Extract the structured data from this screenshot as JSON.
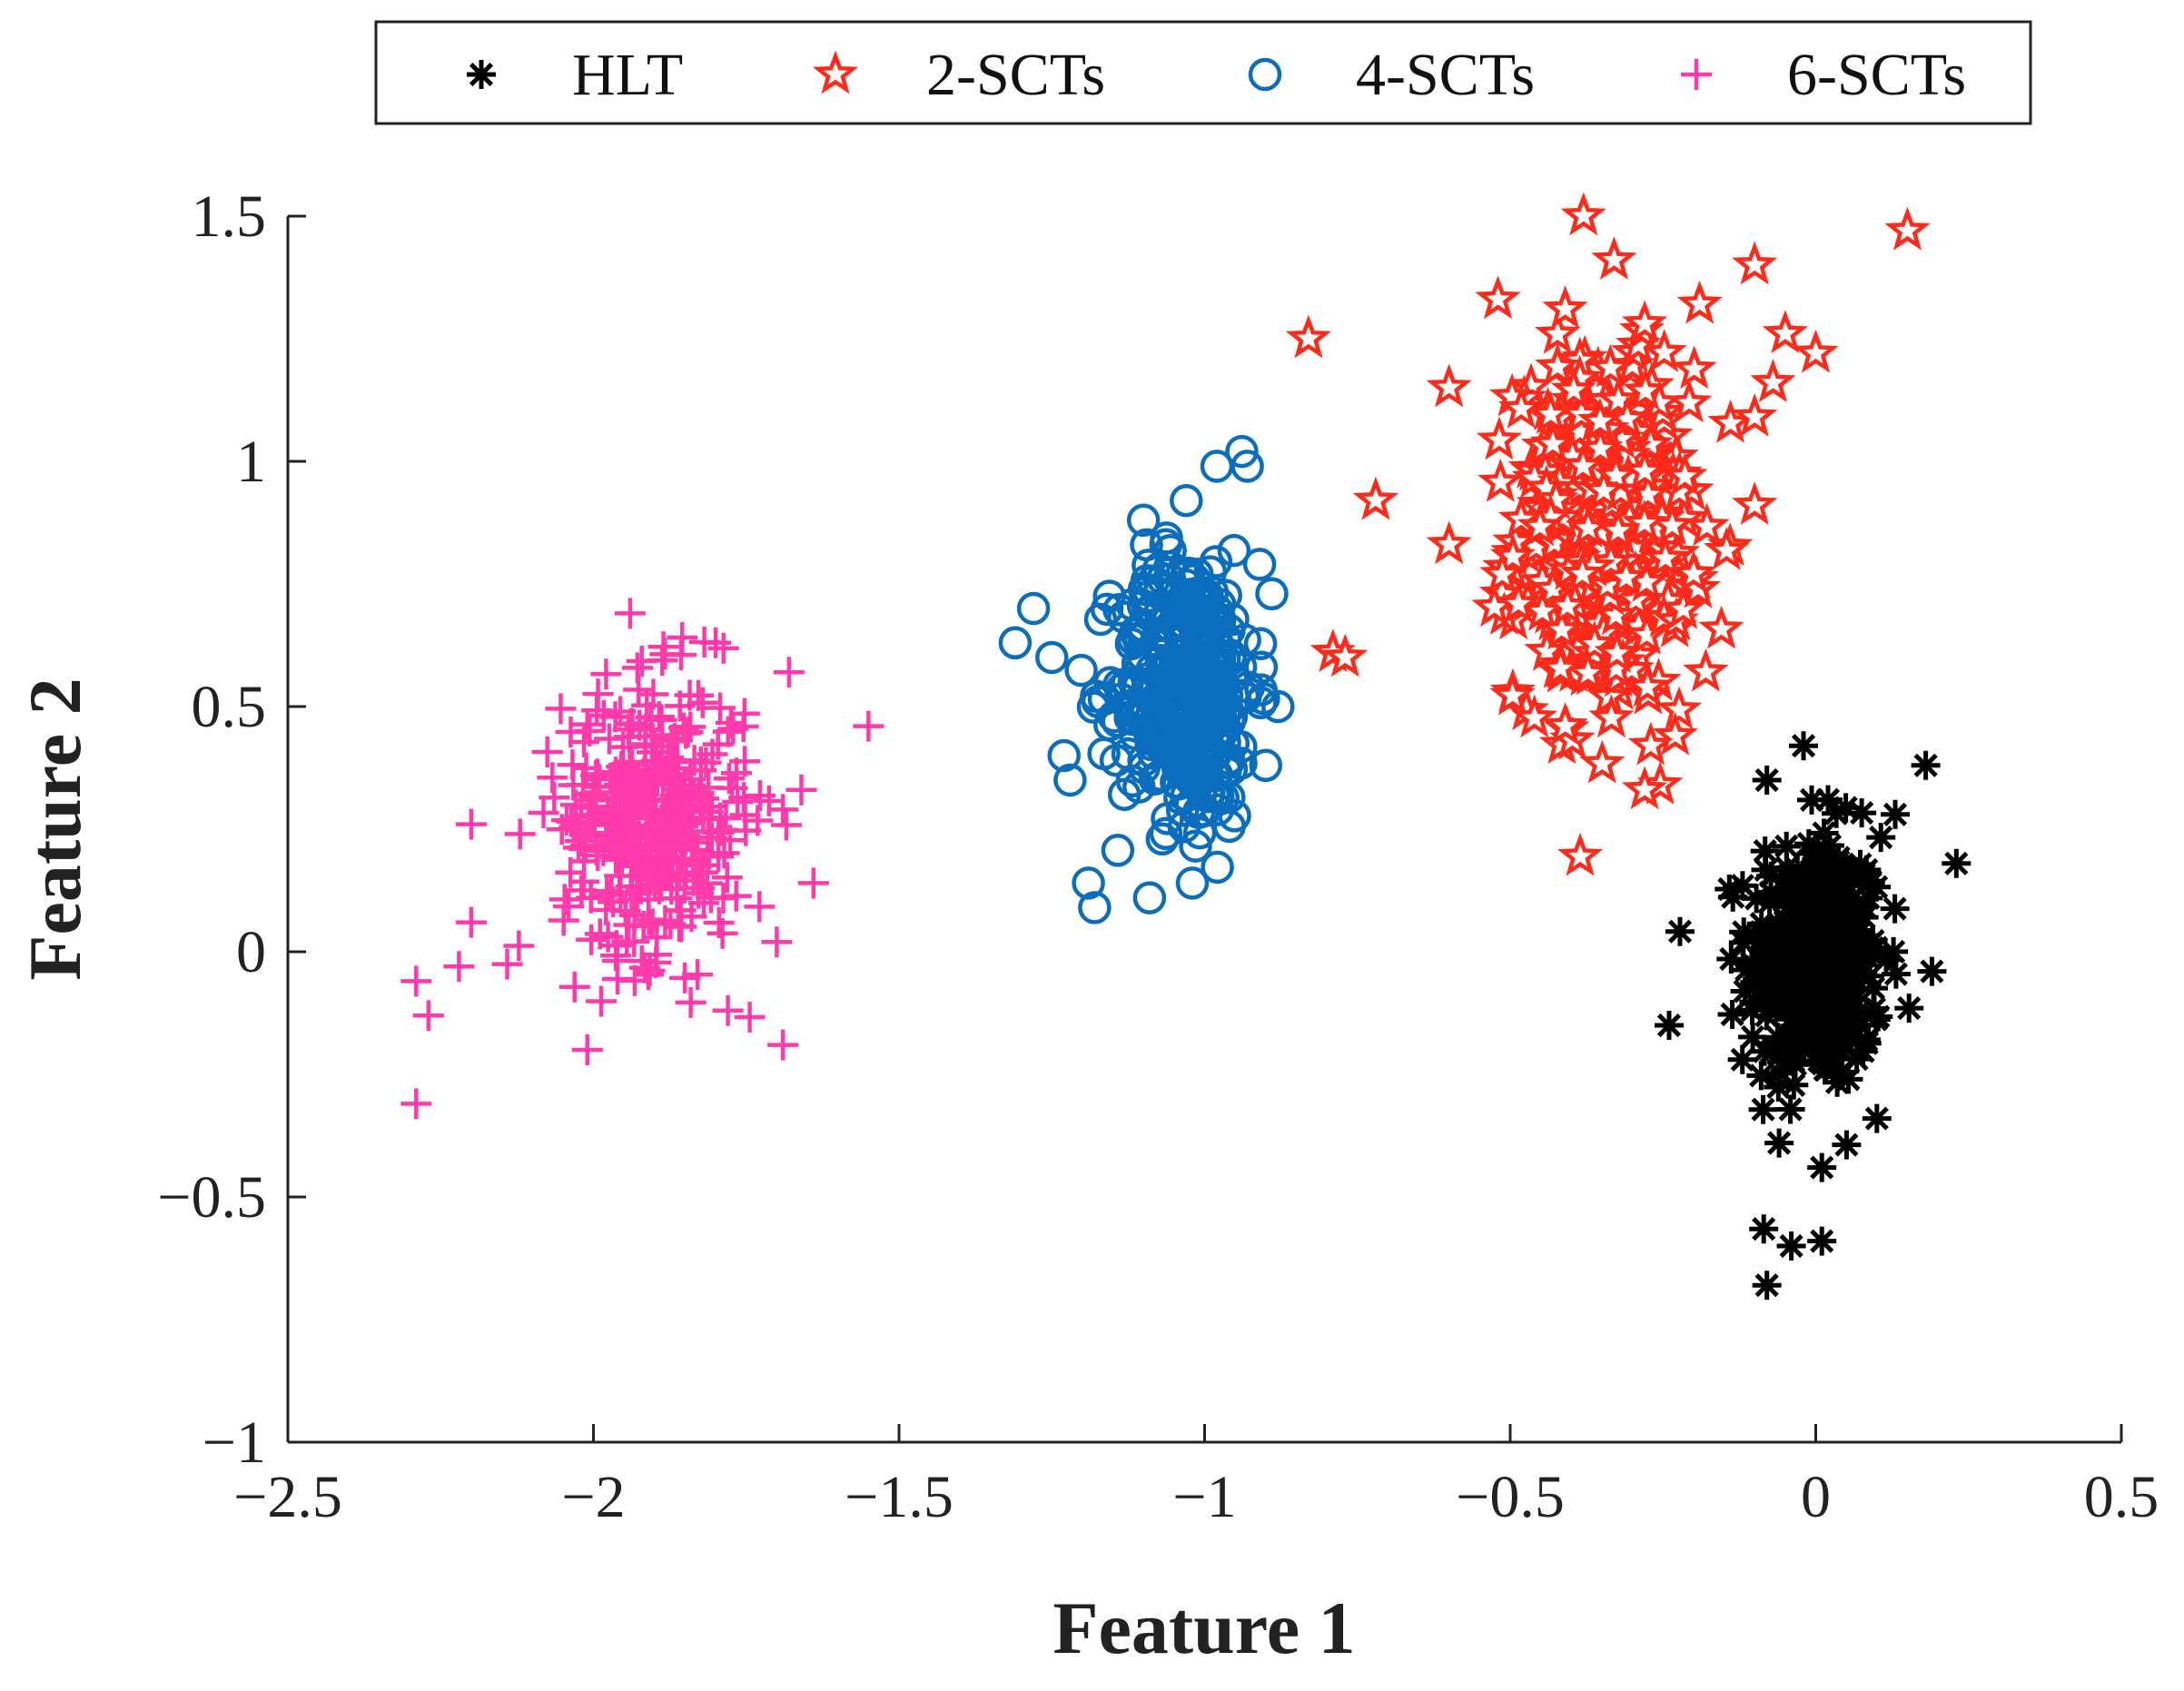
{
  "chart_data": {
    "type": "scatter",
    "title": "",
    "xlabel": "Feature 1",
    "ylabel": "Feature 2",
    "xlim": [
      -2.5,
      0.5
    ],
    "ylim": [
      -1,
      1.5
    ],
    "xticks": [
      -2.5,
      -2,
      -1.5,
      -1,
      -0.5,
      0,
      0.5
    ],
    "xtick_labels": [
      "−2.5",
      "−2",
      "−1.5",
      "−1",
      "−0.5",
      "0",
      "0.5"
    ],
    "yticks": [
      -1,
      -0.5,
      0,
      0.5,
      1,
      1.5
    ],
    "ytick_labels": [
      "−1",
      "−0.5",
      "0",
      "0.5",
      "1",
      "1.5"
    ],
    "grid": false,
    "legend_position": "top, horizontal, outside plot",
    "series": [
      {
        "name": "HLT",
        "marker": "asterisk",
        "color": "#000000",
        "cluster": {
          "mean": [
            0.0,
            -0.02
          ],
          "std": [
            0.055,
            0.13
          ],
          "n": 400
        },
        "points": [
          [
            -0.02,
            0.42
          ],
          [
            -0.08,
            0.35
          ],
          [
            0.02,
            0.31
          ],
          [
            0.18,
            0.38
          ],
          [
            0.13,
            0.28
          ],
          [
            0.23,
            0.18
          ],
          [
            0.19,
            -0.04
          ],
          [
            -0.24,
            -0.15
          ],
          [
            -0.12,
            -0.22
          ],
          [
            0.1,
            -0.34
          ],
          [
            -0.06,
            -0.39
          ],
          [
            0.01,
            -0.44
          ],
          [
            -0.04,
            -0.6
          ],
          [
            0.01,
            -0.59
          ],
          [
            -0.08,
            -0.68
          ]
        ]
      },
      {
        "name": "2-SCTs",
        "marker": "pentagram",
        "color": "#ff2a1a",
        "cluster": {
          "mean": [
            -0.35,
            0.85
          ],
          "std": [
            0.07,
            0.17
          ],
          "n": 400
        },
        "points": [
          [
            -0.38,
            1.5
          ],
          [
            -0.33,
            1.41
          ],
          [
            0.15,
            1.47
          ],
          [
            -0.1,
            1.4
          ],
          [
            -0.83,
            1.25
          ],
          [
            -0.52,
            1.33
          ],
          [
            -0.41,
            1.31
          ],
          [
            -0.28,
            1.28
          ],
          [
            -0.19,
            1.32
          ],
          [
            -0.05,
            1.26
          ],
          [
            0.0,
            1.22
          ],
          [
            -0.07,
            1.16
          ],
          [
            -0.1,
            1.09
          ],
          [
            -0.6,
            1.15
          ],
          [
            -0.72,
            0.92
          ],
          [
            -0.6,
            0.83
          ],
          [
            -0.1,
            0.91
          ],
          [
            -0.2,
            0.77
          ],
          [
            -0.79,
            0.61
          ],
          [
            -0.77,
            0.6
          ],
          [
            -0.18,
            0.57
          ],
          [
            -0.23,
            0.44
          ],
          [
            -0.27,
            0.42
          ],
          [
            -0.28,
            0.33
          ],
          [
            -0.41,
            0.46
          ]
        ]
      },
      {
        "name": "4-SCTs",
        "marker": "circle",
        "color": "#0a6dbd",
        "cluster": {
          "mean": [
            -1.03,
            0.54
          ],
          "std": [
            0.055,
            0.14
          ],
          "n": 400
        },
        "points": [
          [
            -0.98,
            0.99
          ],
          [
            -0.93,
            0.99
          ],
          [
            -1.03,
            0.92
          ],
          [
            -1.1,
            0.88
          ],
          [
            -1.31,
            0.63
          ],
          [
            -1.28,
            0.7
          ],
          [
            -1.25,
            0.6
          ],
          [
            -1.23,
            0.4
          ],
          [
            -1.22,
            0.35
          ],
          [
            -1.19,
            0.14
          ],
          [
            -1.18,
            0.09
          ],
          [
            -1.09,
            0.11
          ],
          [
            -1.02,
            0.14
          ],
          [
            -0.9,
            0.38
          ],
          [
            -0.88,
            0.5
          ],
          [
            -0.89,
            0.73
          ],
          [
            -0.91,
            0.79
          ]
        ]
      },
      {
        "name": "6-SCTs",
        "marker": "plus",
        "color": "#ff3aab",
        "cluster": {
          "mean": [
            -1.9,
            0.27
          ],
          "std": [
            0.075,
            0.14
          ],
          "n": 400
        },
        "points": [
          [
            -1.94,
            0.69
          ],
          [
            -1.8,
            0.63
          ],
          [
            -1.68,
            0.57
          ],
          [
            -1.55,
            0.46
          ],
          [
            -2.2,
            0.26
          ],
          [
            -2.12,
            0.24
          ],
          [
            -1.69,
            0.29
          ],
          [
            -1.64,
            0.14
          ],
          [
            -2.2,
            0.06
          ],
          [
            -1.7,
            0.02
          ],
          [
            -2.29,
            -0.06
          ],
          [
            -2.27,
            -0.13
          ],
          [
            -2.22,
            -0.03
          ],
          [
            -1.78,
            -0.12
          ],
          [
            -2.01,
            -0.2
          ],
          [
            -1.69,
            -0.19
          ],
          [
            -2.29,
            -0.31
          ]
        ]
      }
    ]
  }
}
